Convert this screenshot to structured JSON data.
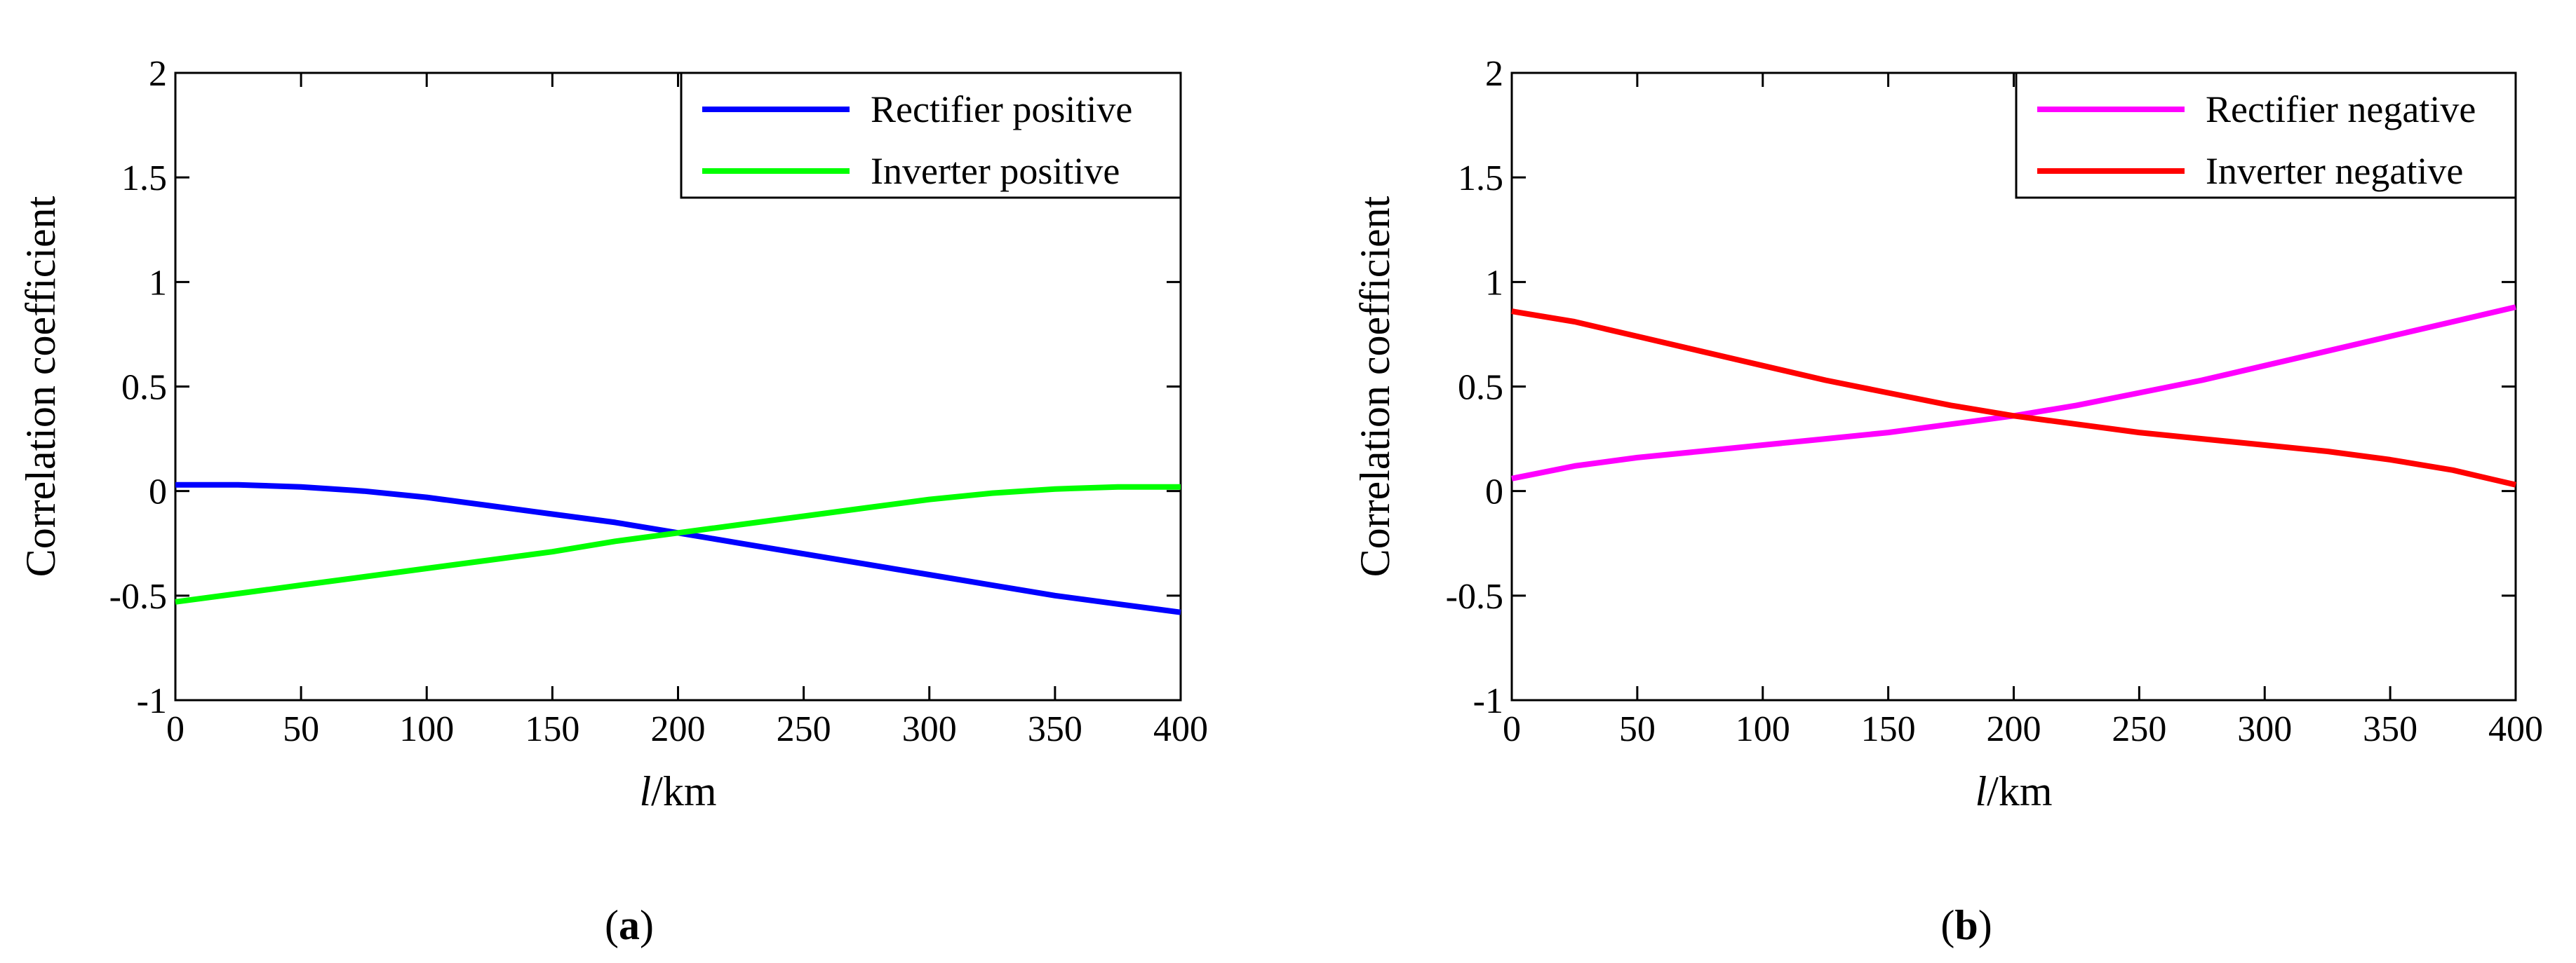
{
  "chart_data": [
    {
      "panel": "a",
      "caption": {
        "open": "(",
        "letter": "a",
        "close": ")"
      },
      "type": "line",
      "xlabel": {
        "italic": "l",
        "rest": "/km"
      },
      "ylabel": "Correlation coefficient",
      "xlim": [
        0,
        400
      ],
      "ylim": [
        -1,
        2
      ],
      "xticks": [
        0,
        50,
        100,
        150,
        200,
        250,
        300,
        350,
        400
      ],
      "yticks": [
        -1,
        -0.5,
        0,
        0.5,
        1,
        1.5,
        2
      ],
      "xtick_labels": [
        "0",
        "50",
        "100",
        "150",
        "200",
        "250",
        "300",
        "350",
        "400"
      ],
      "ytick_labels": [
        "-1",
        "-0.5",
        "0",
        "0.5",
        "1",
        "1.5",
        "2"
      ],
      "grid": false,
      "legend_position": "top-right",
      "series": [
        {
          "name": "Rectifier positive",
          "color": "#0000ff",
          "x": [
            0,
            25,
            50,
            75,
            100,
            125,
            150,
            175,
            200,
            225,
            250,
            275,
            300,
            325,
            350,
            375,
            400
          ],
          "y": [
            0.03,
            0.03,
            0.02,
            0.0,
            -0.03,
            -0.07,
            -0.11,
            -0.15,
            -0.2,
            -0.25,
            -0.3,
            -0.35,
            -0.4,
            -0.45,
            -0.5,
            -0.54,
            -0.58
          ]
        },
        {
          "name": "Inverter positive",
          "color": "#00ff00",
          "x": [
            0,
            25,
            50,
            75,
            100,
            125,
            150,
            175,
            200,
            225,
            250,
            275,
            300,
            325,
            350,
            375,
            400
          ],
          "y": [
            -0.53,
            -0.49,
            -0.45,
            -0.41,
            -0.37,
            -0.33,
            -0.29,
            -0.24,
            -0.2,
            -0.16,
            -0.12,
            -0.08,
            -0.04,
            -0.01,
            0.01,
            0.02,
            0.02
          ]
        }
      ]
    },
    {
      "panel": "b",
      "caption": {
        "open": "(",
        "letter": "b",
        "close": ")"
      },
      "type": "line",
      "xlabel": {
        "italic": "l",
        "rest": "/km"
      },
      "ylabel": "Correlation coefficient",
      "xlim": [
        0,
        400
      ],
      "ylim": [
        -1,
        2
      ],
      "xticks": [
        0,
        50,
        100,
        150,
        200,
        250,
        300,
        350,
        400
      ],
      "yticks": [
        -1,
        -0.5,
        0,
        0.5,
        1,
        1.5,
        2
      ],
      "xtick_labels": [
        "0",
        "50",
        "100",
        "150",
        "200",
        "250",
        "300",
        "350",
        "400"
      ],
      "ytick_labels": [
        "-1",
        "-0.5",
        "0",
        "0.5",
        "1",
        "1.5",
        "2"
      ],
      "grid": false,
      "legend_position": "top-right",
      "series": [
        {
          "name": "Rectifier negative",
          "color": "#ff00ff",
          "x": [
            0,
            25,
            50,
            75,
            100,
            125,
            150,
            175,
            200,
            225,
            250,
            275,
            300,
            325,
            350,
            375,
            400
          ],
          "y": [
            0.06,
            0.12,
            0.16,
            0.19,
            0.22,
            0.25,
            0.28,
            0.32,
            0.36,
            0.41,
            0.47,
            0.53,
            0.6,
            0.67,
            0.74,
            0.81,
            0.88
          ]
        },
        {
          "name": "Inverter negative",
          "color": "#ff0000",
          "x": [
            0,
            25,
            50,
            75,
            100,
            125,
            150,
            175,
            200,
            225,
            250,
            275,
            300,
            325,
            350,
            375,
            400
          ],
          "y": [
            0.86,
            0.81,
            0.74,
            0.67,
            0.6,
            0.53,
            0.47,
            0.41,
            0.36,
            0.32,
            0.28,
            0.25,
            0.22,
            0.19,
            0.15,
            0.1,
            0.03
          ]
        }
      ]
    }
  ]
}
